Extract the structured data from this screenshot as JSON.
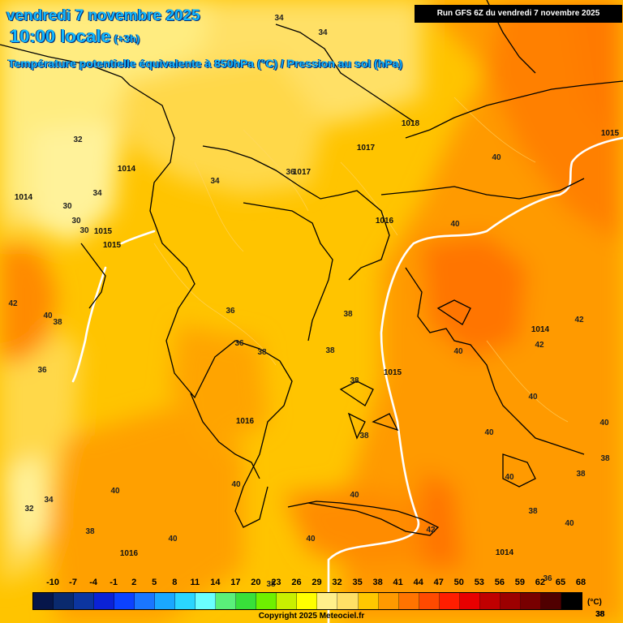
{
  "header": {
    "date": "vendredi 7 novembre 2025",
    "time": "10:00 locale",
    "offset": "(+3h)",
    "subtitle": "Température potentielle équivalente à 850hPa (°C) / Pression au sol (hPa)",
    "run": "Run GFS 6Z du vendredi 7 novembre 2025"
  },
  "legend": {
    "ticks": [
      "-10",
      "-7",
      "-4",
      "-1",
      "2",
      "5",
      "8",
      "11",
      "14",
      "17",
      "20",
      "23",
      "26",
      "29",
      "32",
      "35",
      "38",
      "41",
      "44",
      "47",
      "50",
      "53",
      "56",
      "59",
      "62",
      "65",
      "68"
    ],
    "colors": [
      "#06164a",
      "#0a2a6e",
      "#0c35a0",
      "#0b22d6",
      "#0c42ff",
      "#1a76ff",
      "#1aa8ff",
      "#2ad6ff",
      "#6affff",
      "#5af07a",
      "#38e03a",
      "#6ef000",
      "#c8f000",
      "#ffff00",
      "#fff08a",
      "#ffe066",
      "#ffc800",
      "#ff9a00",
      "#ff7400",
      "#ff4a00",
      "#ff1e00",
      "#e80000",
      "#c00000",
      "#9c0000",
      "#780000",
      "#500000",
      "#000000"
    ],
    "unit": "(°C)",
    "extra": "38"
  },
  "copyright": "Copyright 2025 Meteociel.fr",
  "map_labels": {
    "theta": [
      {
        "text": "34"
      },
      {
        "text": "34"
      },
      {
        "text": "32"
      },
      {
        "text": "34"
      },
      {
        "text": "30"
      },
      {
        "text": "30"
      },
      {
        "text": "30"
      },
      {
        "text": "34"
      },
      {
        "text": "36"
      },
      {
        "text": "42"
      },
      {
        "text": "40"
      },
      {
        "text": "38"
      },
      {
        "text": "36"
      },
      {
        "text": "36"
      },
      {
        "text": "36"
      },
      {
        "text": "38"
      },
      {
        "text": "38"
      },
      {
        "text": "38"
      },
      {
        "text": "38"
      },
      {
        "text": "40"
      },
      {
        "text": "40"
      },
      {
        "text": "40"
      },
      {
        "text": "40"
      },
      {
        "text": "42"
      },
      {
        "text": "42"
      },
      {
        "text": "40"
      },
      {
        "text": "40"
      },
      {
        "text": "40"
      },
      {
        "text": "38"
      },
      {
        "text": "38"
      },
      {
        "text": "40"
      },
      {
        "text": "38"
      },
      {
        "text": "40"
      },
      {
        "text": "40"
      },
      {
        "text": "42"
      },
      {
        "text": "40"
      },
      {
        "text": "40"
      },
      {
        "text": "40"
      },
      {
        "text": "38"
      },
      {
        "text": "34"
      },
      {
        "text": "32"
      },
      {
        "text": "38"
      },
      {
        "text": "36"
      },
      {
        "text": "38"
      },
      {
        "text": "38"
      }
    ],
    "pressure": [
      {
        "text": "1014"
      },
      {
        "text": "1014"
      },
      {
        "text": "1015"
      },
      {
        "text": "1015"
      },
      {
        "text": "1017"
      },
      {
        "text": "1017"
      },
      {
        "text": "1018"
      },
      {
        "text": "1015"
      },
      {
        "text": "1016"
      },
      {
        "text": "1014"
      },
      {
        "text": "1015"
      },
      {
        "text": "1016"
      },
      {
        "text": "1016"
      },
      {
        "text": "1014"
      }
    ]
  }
}
